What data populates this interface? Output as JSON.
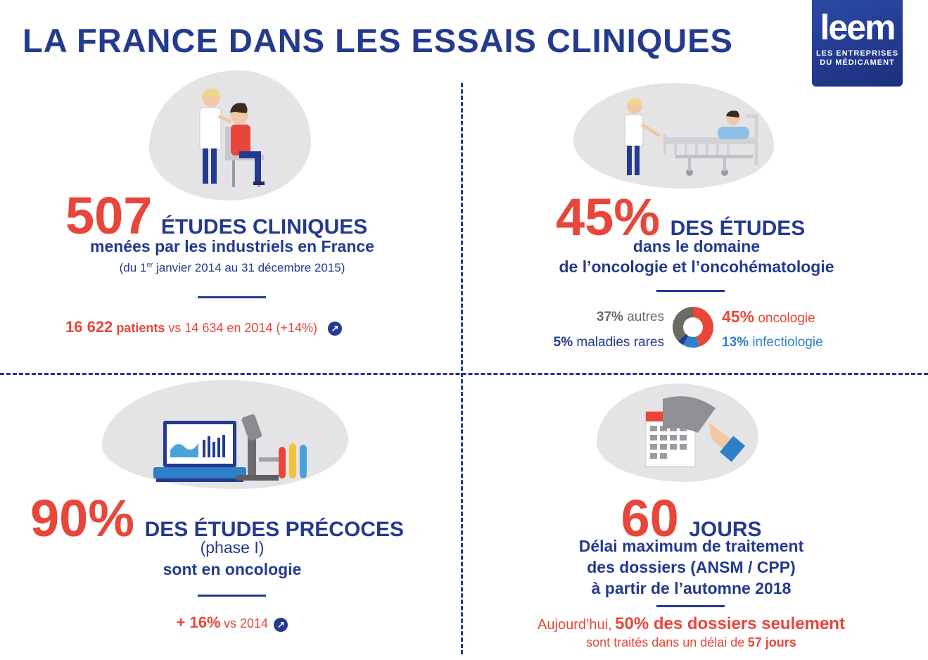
{
  "title": "LA FRANCE DANS LES ESSAIS CLINIQUES",
  "logo": {
    "word": "leem",
    "line1": "LES ENTREPRISES",
    "line2": "DU MÉDICAMENT"
  },
  "q1": {
    "big": "507",
    "headline": "ÉTUDES CLINIQUES",
    "sub": "menées par les industriels en France",
    "period_pre": "(du 1",
    "period_sup": "er",
    "period_post": " janvier 2014 au 31 décembre 2015)",
    "patients_value": "16 622",
    "patients_word": "patients",
    "patients_rest": "vs 14 634 en 2014 (+14%)",
    "arrow_icon": "up-right-arrow-icon"
  },
  "q2": {
    "big": "45%",
    "headline": "DES ÉTUDES",
    "sub1": "dans le domaine",
    "sub2": "de l’oncologie et l’oncohématologie",
    "chart_data": {
      "type": "pie",
      "style": "donut",
      "series": [
        {
          "label": "oncologie",
          "value": 45,
          "value_text": "45%",
          "color": "#e8463a"
        },
        {
          "label": "infectiologie",
          "value": 13,
          "value_text": "13%",
          "color": "#2f7fc9"
        },
        {
          "label": "maladies rares",
          "value": 5,
          "value_text": "5%",
          "color": "#243a8f"
        },
        {
          "label": "autres",
          "value": 37,
          "value_text": "37%",
          "color": "#6b6b64"
        }
      ]
    }
  },
  "q3": {
    "big": "90%",
    "headline": "DES ÉTUDES PRÉCOCES",
    "sub1": "(phase I)",
    "sub2": "sont en oncologie",
    "stat_value": "+ 16%",
    "stat_rest": "vs 2014",
    "arrow_icon": "up-right-arrow-icon"
  },
  "q4": {
    "big": "60",
    "headline": "JOURS",
    "sub1": "Délai maximum de traitement",
    "sub2": "des dossiers (ANSM / CPP)",
    "sub3": "à partir de l’automne 2018",
    "foot_pre": "Aujourd’hui,",
    "foot_bold": "50% des dossiers seulement",
    "foot2_pre": "sont traités dans un délai de",
    "foot2_bold": "57 jours"
  }
}
